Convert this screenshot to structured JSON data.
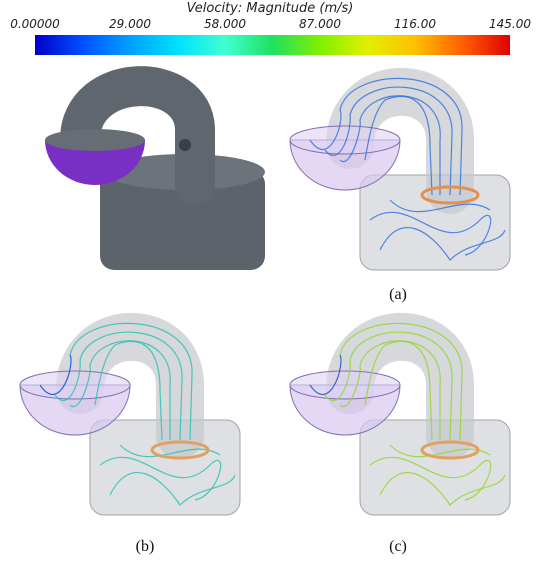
{
  "colorbar": {
    "title": "Velocity: Magnitude (m/s)",
    "labels": [
      "0.00000",
      "29.000",
      "58.000",
      "87.000",
      "116.00",
      "145.00"
    ]
  },
  "captions": [
    "(a)",
    "(b)",
    "(c)"
  ]
}
